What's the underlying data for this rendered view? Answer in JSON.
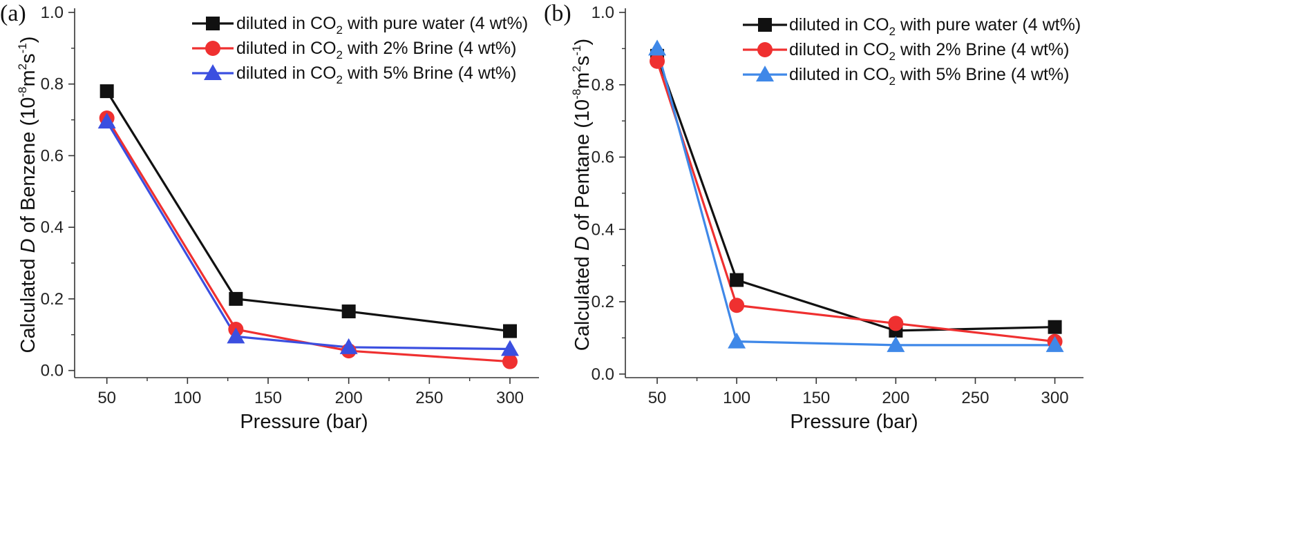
{
  "chart_data": [
    {
      "type": "line",
      "panel_label": "(a)",
      "xlabel": "Pressure (bar)",
      "ylabel": {
        "prefix": "Calculated ",
        "italic": "D",
        "middle": " of Benzene (10",
        "sup1": "-8",
        "m": "m",
        "sup2": "2",
        "s": "s",
        "sup3": "-1",
        "suffix": ")"
      },
      "xlim": [
        30,
        318
      ],
      "ylim": [
        -0.02,
        1.0
      ],
      "xticks": [
        50,
        100,
        150,
        200,
        250,
        300
      ],
      "xtick_labels": [
        "50",
        "100",
        "150",
        "200",
        "250",
        "300"
      ],
      "yticks": [
        0.0,
        0.2,
        0.4,
        0.6,
        0.8,
        1.0
      ],
      "ytick_labels": [
        "0.0",
        "0.2",
        "0.4",
        "0.6",
        "0.8",
        "1.0"
      ],
      "legend_position": "top-right",
      "grid": false,
      "series": [
        {
          "name": {
            "pre": "diluted in CO",
            "sub": "2",
            "post": " with pure water (4 wt%)"
          },
          "color": "#111111",
          "marker": "square",
          "x": [
            50,
            130,
            200,
            300
          ],
          "y": [
            0.78,
            0.2,
            0.165,
            0.11
          ]
        },
        {
          "name": {
            "pre": "diluted in CO",
            "sub": "2",
            "post": " with 2% Brine (4 wt%)"
          },
          "color": "#ef3030",
          "marker": "circle",
          "x": [
            50,
            130,
            200,
            300
          ],
          "y": [
            0.705,
            0.115,
            0.055,
            0.025
          ]
        },
        {
          "name": {
            "pre": "diluted in CO",
            "sub": "2",
            "post": " with 5% Brine (4 wt%)"
          },
          "color": "#3b4fe0",
          "marker": "triangle",
          "x": [
            50,
            130,
            200,
            300
          ],
          "y": [
            0.695,
            0.095,
            0.065,
            0.06
          ]
        }
      ]
    },
    {
      "type": "line",
      "panel_label": "(b)",
      "xlabel": "Pressure (bar)",
      "ylabel": {
        "prefix": "Calculated ",
        "italic": "D",
        "middle": " of Pentane (10",
        "sup1": "-8",
        "m": "m",
        "sup2": "2",
        "s": "s",
        "sup3": "-1",
        "suffix": ")"
      },
      "xlim": [
        30,
        318
      ],
      "ylim": [
        -0.01,
        1.0
      ],
      "xticks": [
        50,
        100,
        150,
        200,
        250,
        300
      ],
      "xtick_labels": [
        "50",
        "100",
        "150",
        "200",
        "250",
        "300"
      ],
      "yticks": [
        0.0,
        0.2,
        0.4,
        0.6,
        0.8,
        1.0
      ],
      "ytick_labels": [
        "0.0",
        "0.2",
        "0.4",
        "0.6",
        "0.8",
        "1.0"
      ],
      "legend_position": "top-right",
      "grid": false,
      "series": [
        {
          "name": {
            "pre": "diluted in CO",
            "sub": "2",
            "post": " with pure water (4 wt%)"
          },
          "color": "#111111",
          "marker": "square",
          "x": [
            50,
            100,
            200,
            300
          ],
          "y": [
            0.88,
            0.26,
            0.12,
            0.13
          ]
        },
        {
          "name": {
            "pre": "diluted in CO",
            "sub": "2",
            "post": " with 2% Brine (4 wt%)"
          },
          "color": "#ef3030",
          "marker": "circle",
          "x": [
            50,
            100,
            200,
            300
          ],
          "y": [
            0.865,
            0.19,
            0.14,
            0.09
          ]
        },
        {
          "name": {
            "pre": "diluted in CO",
            "sub": "2",
            "post": " with 5% Brine (4 wt%)"
          },
          "color": "#3f88e8",
          "marker": "triangle",
          "x": [
            50,
            100,
            200,
            300
          ],
          "y": [
            0.9,
            0.09,
            0.08,
            0.08
          ]
        }
      ]
    }
  ]
}
